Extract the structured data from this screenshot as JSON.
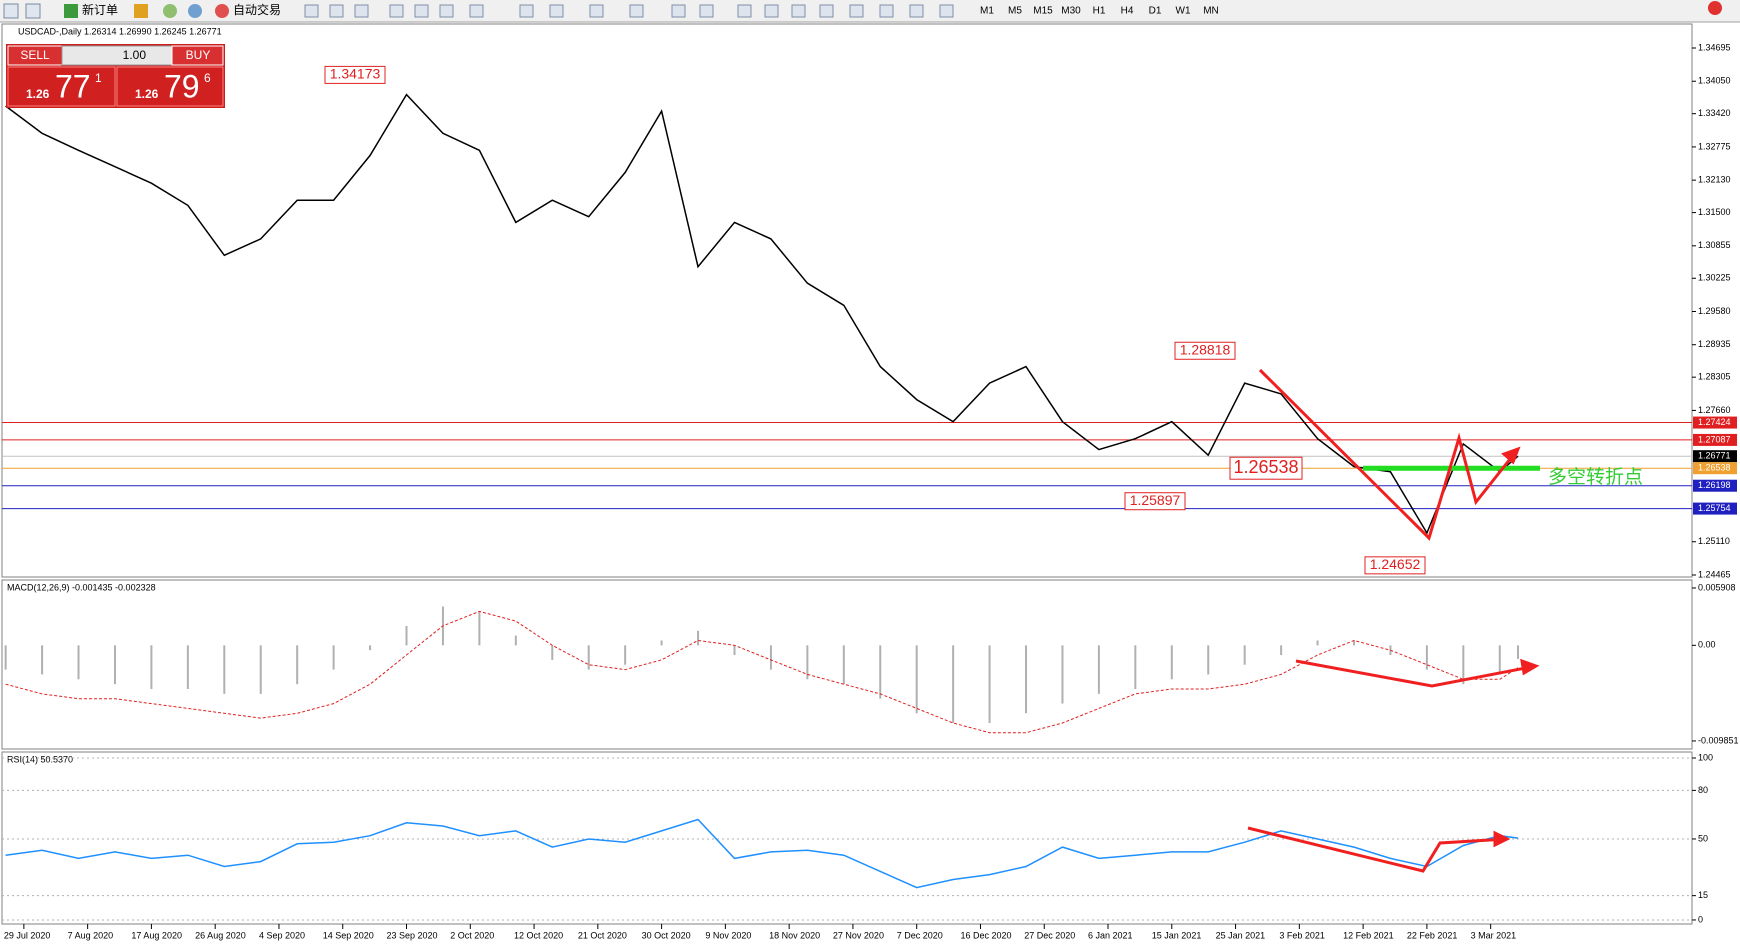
{
  "toolbar": {
    "buttons": [
      "新订单",
      "自动交易"
    ],
    "periods": [
      "M1",
      "M5",
      "M15",
      "M30",
      "H1",
      "H4",
      "D1",
      "W1",
      "MN"
    ]
  },
  "trade_panel": {
    "sell": "SELL",
    "buy": "BUY",
    "lots": "1.00",
    "bid": [
      "1.26",
      "77",
      "1"
    ],
    "ask": [
      "1.26",
      "79",
      "6"
    ]
  },
  "chart_data": [
    {
      "type": "line",
      "title": "USDCAD-,Daily 1.26314 1.26990 1.26245 1.26771",
      "color": "#000000",
      "x": [
        -2,
        2,
        6,
        10,
        14,
        18,
        22,
        26,
        30,
        34,
        38,
        42,
        46,
        50,
        54,
        58,
        62,
        66,
        70,
        74,
        78,
        82,
        86,
        90,
        94,
        98,
        102,
        106,
        110,
        114,
        118,
        122,
        126,
        130,
        134,
        138,
        142,
        146,
        150,
        154,
        158,
        162,
        164
      ],
      "values": [
        1.3357,
        1.3304,
        1.3271,
        1.3239,
        1.3207,
        1.3164,
        1.3067,
        1.3099,
        1.3174,
        1.3174,
        1.3261,
        1.3379,
        1.3304,
        1.3271,
        1.3131,
        1.3174,
        1.3142,
        1.3228,
        1.3347,
        1.3045,
        1.3131,
        1.3099,
        1.3013,
        1.297,
        1.2851,
        1.2787,
        1.2744,
        1.2819,
        1.2851,
        1.2744,
        1.269,
        1.2711,
        1.2744,
        1.2679,
        1.2819,
        1.2798,
        1.2711,
        1.2657,
        1.2647,
        1.2528,
        1.2701,
        1.2647,
        1.26771
      ],
      "xlim": [
        -2.4,
        183.1
      ],
      "xticks": [
        {
          "value": 0,
          "label": "29 Jul 2020"
        },
        {
          "value": 7,
          "label": "7 Aug 2020"
        },
        {
          "value": 14,
          "label": "17 Aug 2020"
        },
        {
          "value": 21,
          "label": "26 Aug 2020"
        },
        {
          "value": 28,
          "label": "4 Sep 2020"
        },
        {
          "value": 35,
          "label": "14 Sep 2020"
        },
        {
          "value": 42,
          "label": "23 Sep 2020"
        },
        {
          "value": 49,
          "label": "2 Oct 2020"
        },
        {
          "value": 56,
          "label": "12 Oct 2020"
        },
        {
          "value": 63,
          "label": "21 Oct 2020"
        },
        {
          "value": 70,
          "label": "30 Oct 2020"
        },
        {
          "value": 77,
          "label": "9 Nov 2020"
        },
        {
          "value": 84,
          "label": "18 Nov 2020"
        },
        {
          "value": 91,
          "label": "27 Nov 2020"
        },
        {
          "value": 98,
          "label": "7 Dec 2020"
        },
        {
          "value": 105,
          "label": "16 Dec 2020"
        },
        {
          "value": 112,
          "label": "27 Dec 2020"
        },
        {
          "value": 119,
          "label": "6 Jan 2021"
        },
        {
          "value": 126,
          "label": "15 Jan 2021"
        },
        {
          "value": 133,
          "label": "25 Jan 2021"
        },
        {
          "value": 140,
          "label": "3 Feb 2021"
        },
        {
          "value": 147,
          "label": "12 Feb 2021"
        },
        {
          "value": 154,
          "label": "22 Feb 2021"
        },
        {
          "value": 161,
          "label": "3 Mar 2021"
        }
      ],
      "ylim": [
        1.24426,
        1.35161
      ],
      "yticks": [
        1.34695,
        {
          "value": 1.3405,
          "label": "1.34050"
        },
        {
          "value": 1.3342,
          "label": "1.33420"
        },
        1.32775,
        {
          "value": 1.3213,
          "label": "1.32130"
        },
        {
          "value": 1.315,
          "label": "1.31500"
        },
        1.30855,
        1.30225,
        {
          "value": 1.2958,
          "label": "1.29580"
        },
        1.28935,
        1.28305,
        {
          "value": 1.2766,
          "label": "1.27660"
        },
        {
          "value": 1.2511,
          "label": "1.25110"
        },
        1.24465
      ],
      "levels": [
        {
          "value": 1.27424,
          "color": "#e02020"
        },
        {
          "value": 1.27087,
          "color": "#e02020"
        },
        {
          "value": 1.26771,
          "color": "#000000"
        },
        {
          "value": 1.26538,
          "color": "#f0a030"
        },
        {
          "value": 1.26198,
          "color": "#2020c0"
        },
        {
          "value": 1.25754,
          "color": "#2020c0"
        }
      ],
      "annotations": [
        1.34173,
        1.28818,
        1.25897,
        1.26538,
        1.24652
      ],
      "note": "多空转折点"
    },
    {
      "type": "macd",
      "title": "MACD(12,26,9) -0.001435 -0.002328",
      "x": [
        -2,
        2,
        6,
        10,
        14,
        18,
        22,
        26,
        30,
        34,
        38,
        42,
        46,
        50,
        54,
        58,
        62,
        66,
        70,
        74,
        78,
        82,
        86,
        90,
        94,
        98,
        102,
        106,
        110,
        114,
        118,
        122,
        126,
        130,
        134,
        138,
        142,
        146,
        150,
        154,
        158,
        162,
        164
      ],
      "series": [
        {
          "style": "bars",
          "color": "#b0b0b0",
          "values": [
            -0.0025,
            -0.003,
            -0.0035,
            -0.004,
            -0.0045,
            -0.0045,
            -0.005,
            -0.005,
            -0.004,
            -0.0025,
            -0.0005,
            0.002,
            0.004,
            0.0035,
            0.001,
            -0.0015,
            -0.0025,
            -0.002,
            0.0005,
            0.0015,
            -0.001,
            -0.0025,
            -0.0035,
            -0.004,
            -0.0055,
            -0.007,
            -0.008,
            -0.008,
            -0.007,
            -0.006,
            -0.005,
            -0.0045,
            -0.0035,
            -0.003,
            -0.002,
            -0.001,
            0.0005,
            0.0005,
            -0.001,
            -0.0025,
            -0.004,
            -0.003,
            -0.0014
          ]
        },
        {
          "style": "dashed",
          "color": "#e02020",
          "values": [
            -0.004,
            -0.005,
            -0.0055,
            -0.0055,
            -0.006,
            -0.0065,
            -0.007,
            -0.0075,
            -0.007,
            -0.006,
            -0.004,
            -0.001,
            0.002,
            0.0035,
            0.0025,
            0,
            -0.002,
            -0.0025,
            -0.0015,
            0.0005,
            0,
            -0.0015,
            -0.003,
            -0.004,
            -0.005,
            -0.0065,
            -0.008,
            -0.009,
            -0.009,
            -0.008,
            -0.0065,
            -0.005,
            -0.0045,
            -0.0045,
            -0.004,
            -0.003,
            -0.001,
            0.0005,
            -0.0005,
            -0.002,
            -0.0035,
            -0.0035,
            -0.0023
          ]
        }
      ],
      "xlim": [
        -2.4,
        183.1
      ],
      "ylim": [
        -0.01068,
        0.00673
      ],
      "yticks": [
        0.005908,
        {
          "value": 0,
          "label": "0.00"
        },
        -0.009851
      ]
    },
    {
      "type": "line",
      "title": "RSI(14) 50.5370",
      "color": "#1e90ff",
      "x": [
        -2,
        2,
        6,
        10,
        14,
        18,
        22,
        26,
        30,
        34,
        38,
        42,
        46,
        50,
        54,
        58,
        62,
        66,
        70,
        74,
        78,
        82,
        86,
        90,
        94,
        98,
        102,
        106,
        110,
        114,
        118,
        122,
        126,
        130,
        134,
        138,
        142,
        146,
        150,
        154,
        158,
        162,
        164
      ],
      "values": [
        40,
        43,
        38,
        42,
        38,
        40,
        33,
        36,
        47,
        48,
        52,
        60,
        58,
        52,
        55,
        45,
        50,
        48,
        55,
        62,
        38,
        42,
        43,
        40,
        30,
        20,
        25,
        28,
        33,
        45,
        38,
        40,
        42,
        42,
        48,
        55,
        50,
        45,
        38,
        33,
        46,
        52,
        50.537
      ],
      "xlim": [
        -2.4,
        183.1
      ],
      "ylim": [
        -2.5,
        103.7
      ],
      "yticks": [
        100,
        80,
        50,
        15,
        0
      ],
      "grid": true
    }
  ]
}
